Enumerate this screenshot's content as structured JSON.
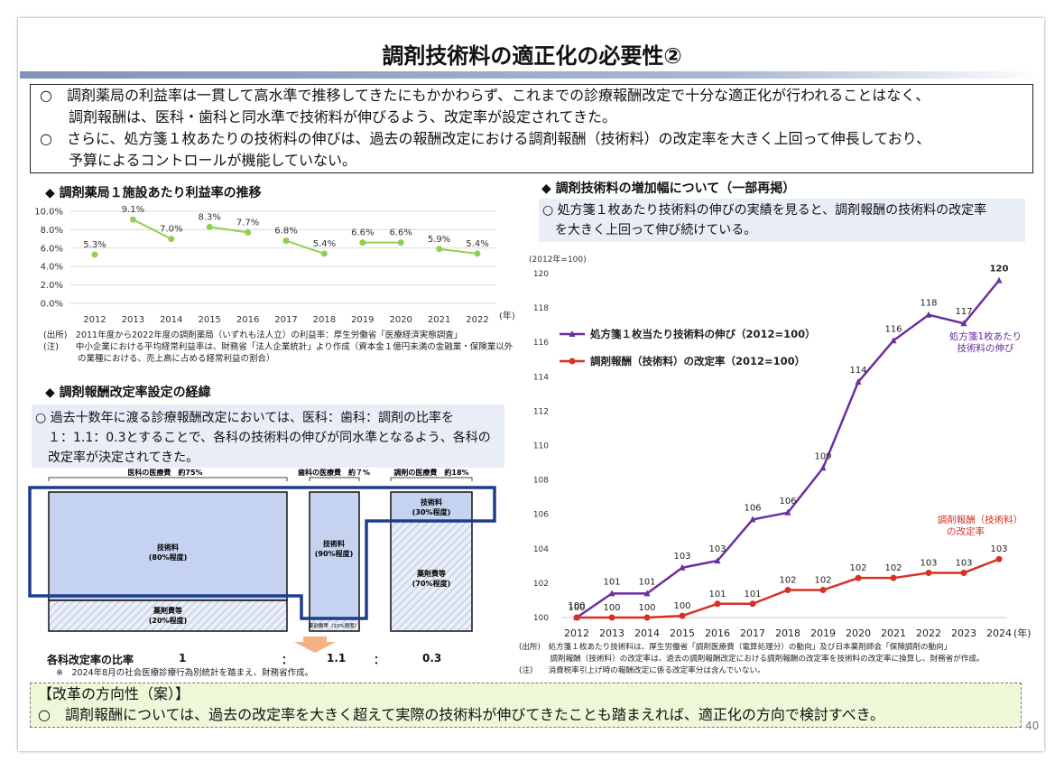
{
  "title": "調剤技術料の適正化の必要性②",
  "page_number": "40",
  "summary": {
    "line1": "○　調剤薬局の利益率は一貫して高水準で推移してきたにもかかわらず、これまでの診療報酬改定で十分な適正化が行われることはなく、",
    "line2": "　　調剤報酬は、医科・歯科と同水準で技術料が伸びるよう、改定率が設定されてきた。",
    "line3": "○　さらに、処方箋１枚あたりの技術料の伸びは、過去の報酬改定における調剤報酬（技術料）の改定率を大きく上回って伸長しており、",
    "line4": "　　予算によるコントロールが機能していない。"
  },
  "profit": {
    "heading": "◆ 調剤薬局１施設あたり利益率の推移",
    "unit": "(年)",
    "source1": "(出所)　2011年度から2022年度の調剤薬局（いずれも法人立）の利益率：厚生労働省「医療経済実態調査」",
    "source2": "(注)　　中小企業における平均経常利益率は、財務省「法人企業統計」より作成（資本金１億円未満の金融業・保険業以外",
    "source3": "　　　　の業種における、売上高に占める経常利益の割合）"
  },
  "history": {
    "heading": "◆ 調剤報酬改定率設定の経緯",
    "text1": "○ 過去十数年に渡る診療報酬改定においては、医科：歯科：調剤の比率を",
    "text2": "　１：1.1：0.3とすることで、各科の技術料の伸びが同水準となるよう、各科の",
    "text3": "　改定率が決定されてきた。",
    "medical_cost": "医科の医療費　約75%",
    "dental_cost": "歯科の医療費　約７%",
    "pharmacy_cost": "調剤の医療費　約18%",
    "medical_tech": "技術料",
    "medical_tech_pct": "(80%程度)",
    "medical_drug": "薬剤費等",
    "medical_drug_pct": "(20%程度)",
    "dental_tech": "技術料",
    "dental_tech_pct": "(90%程度)",
    "dental_drug": "薬剤費等（10%程度）",
    "pharmacy_tech": "技術料",
    "pharmacy_tech_pct": "(30%程度)",
    "pharmacy_drug": "薬剤費等",
    "pharmacy_drug_pct": "(70%程度)",
    "ratio_label": "各科改定率の比率",
    "ratio_medical": "1",
    "colon1": "：",
    "ratio_dental": "1.1",
    "colon2": "：",
    "ratio_pharmacy": "0.3",
    "note": "※　2024年8月の社会医療診療行為別統計を踏まえ、財務省作成。"
  },
  "increase": {
    "heading": "◆ 調剤技術料の増加幅について（一部再掲）",
    "note1": "○ 処方箋１枚あたり技術料の伸びの実績を見ると、調剤報酬の技術料の改定率",
    "note2": "　を大きく上回って伸び続けている。",
    "base": "(2012年=100)",
    "unit": "(年)",
    "side_label_purple1": "処方箋1枚あたり",
    "side_label_purple2": "技術料の伸び",
    "side_label_red1": "調剤報酬（技術料）",
    "side_label_red2": "の改定率",
    "source1": "(出所)　処方箋１枚あたり技術料は、厚生労働省「調剤医療費（電算処理分）の動向」及び日本薬剤師会「保険調剤の動向」",
    "source2": "　　　　調剤報酬（技術料）の改定率は、過去の調剤報酬改定における調剤報酬の改定率を技術料の改定率に換算し、財務省が作成。",
    "source3": "(注)　　消費税率引上げ時の報酬改定に係る改定率分は含んでいない。"
  },
  "reform": {
    "title": "【改革の方向性（案）】",
    "text": "○　調剤報酬については、過去の改定率を大きく超えて実際の技術料が伸びてきたことも踏まえれば、適正化の方向で検討すべき。"
  },
  "colors": {
    "purple": "#6a2fa0",
    "red": "#d93025",
    "green_line": "#8fd14f",
    "navy": "#1f3d8a",
    "light_blue": "#c5d3f0"
  },
  "chart_data": [
    {
      "type": "line",
      "title": "調剤薬局１施設あたり利益率の推移",
      "x": [
        2012,
        2013,
        2014,
        2015,
        2016,
        2017,
        2018,
        2019,
        2020,
        2021,
        2022
      ],
      "series": [
        {
          "values": [
            5.3,
            9.1,
            7.0,
            8.3,
            7.7,
            6.8,
            5.4,
            6.6,
            6.6,
            5.9,
            5.4
          ]
        }
      ],
      "data_labels": [
        "5.3%",
        "9.1%",
        "7.0%",
        "8.3%",
        "7.7%",
        "6.8%",
        "5.4%",
        "6.6%",
        "6.6%",
        "5.9%",
        "5.4%"
      ],
      "yticks": [
        "0.0%",
        "2.0%",
        "4.0%",
        "6.0%",
        "8.0%",
        "10.0%"
      ],
      "ylim": [
        0,
        10
      ],
      "grid": true
    },
    {
      "type": "line",
      "title": "調剤技術料の増加幅について",
      "x": [
        2012,
        2013,
        2014,
        2015,
        2016,
        2017,
        2018,
        2019,
        2020,
        2021,
        2022,
        2023,
        2024
      ],
      "series": [
        {
          "name": "処方箋１枚当たり技術料の伸び（2012=100）",
          "values": [
            100,
            101.4,
            101.4,
            102.9,
            103.3,
            105.7,
            106.1,
            108.7,
            113.7,
            116.1,
            117.6,
            117.1,
            119.6
          ]
        },
        {
          "name": "調剤報酬（技術料）の改定率（2012=100）",
          "values": [
            100,
            100,
            100,
            100.1,
            100.8,
            100.8,
            101.6,
            101.6,
            102.3,
            102.3,
            102.6,
            102.6,
            103.4
          ]
        }
      ],
      "labels_purple": [
        "100",
        "101",
        "101",
        "103",
        "103",
        "106",
        "106",
        "109",
        "114",
        "116",
        "118",
        "117",
        "120"
      ],
      "labels_red": [
        "100",
        "100",
        "100",
        "100",
        "101",
        "101",
        "102",
        "102",
        "102",
        "102",
        "103",
        "103",
        "103"
      ],
      "yticks": [
        100,
        102,
        104,
        106,
        108,
        110,
        112,
        114,
        116,
        118,
        120
      ],
      "ylim": [
        100,
        120
      ],
      "legend": "upper-left",
      "grid": false
    }
  ]
}
